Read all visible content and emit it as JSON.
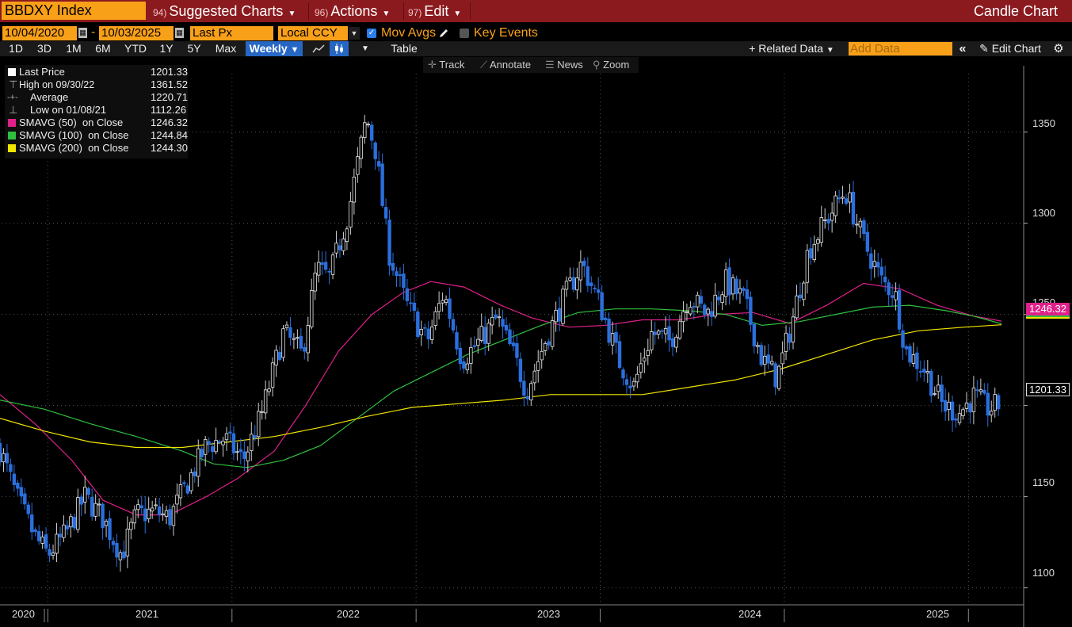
{
  "header": {
    "ticker": "BBDXY Index",
    "menus": [
      {
        "num": "94)",
        "label": "Suggested Charts"
      },
      {
        "num": "96)",
        "label": "Actions"
      },
      {
        "num": "97)",
        "label": "Edit"
      }
    ],
    "chart_title": "Candle Chart"
  },
  "controls": {
    "start_date": "10/04/2020",
    "range_sep": "-",
    "end_date": "10/03/2025",
    "field": "Last Px",
    "currency": "Local CCY",
    "mov_avgs_label": "Mov Avgs",
    "key_events_label": "Key Events"
  },
  "periods": [
    "1D",
    "3D",
    "1M",
    "6M",
    "YTD",
    "1Y",
    "5Y",
    "Max"
  ],
  "frequency": "Weekly",
  "table_label": "Table",
  "related_data_label": "Related Data",
  "add_data_placeholder": "Add Data",
  "edit_chart_label": "Edit Chart",
  "tools": [
    "Track",
    "Annotate",
    "News",
    "Zoom"
  ],
  "legend": [
    {
      "label": "Last Price",
      "value": "1201.33",
      "color": "#ffffff"
    },
    {
      "label": "High on 09/30/22",
      "value": "1361.52",
      "color": ""
    },
    {
      "label": "Average",
      "value": "1220.71",
      "color": ""
    },
    {
      "label": "Low on 01/08/21",
      "value": "1112.26",
      "color": ""
    },
    {
      "label": "SMAVG (50)  on Close",
      "value": "1246.32",
      "color": "#e0208a"
    },
    {
      "label": "SMAVG (100)  on Close",
      "value": "1244.84",
      "color": "#2fbf3f"
    },
    {
      "label": "SMAVG (200)  on Close",
      "value": "1244.30",
      "color": "#f2e500"
    }
  ],
  "price_tags": {
    "sma50": "1246.32",
    "last": "1201.33"
  },
  "colors": {
    "accent": "#f9a019",
    "header_red": "#8b1a1f",
    "candle_down": "#2b6fdc",
    "candle_up": "#ffffff",
    "sma50": "#e0208a",
    "sma100": "#2fbf3f",
    "sma200": "#f2e500"
  },
  "chart_data": {
    "type": "candlestick",
    "title": "BBDXY Index",
    "frequency": "weekly",
    "ylim": [
      1092,
      1382
    ],
    "y_ticks": [
      1100,
      1150,
      1200,
      1250,
      1300,
      1350
    ],
    "x_labels": [
      "2020",
      "2021",
      "2022",
      "2023",
      "2024",
      "2025"
    ],
    "x_range": [
      "2020-10-04",
      "2025-10-03"
    ],
    "close_path": [
      {
        "t": 2020.76,
        "v": 1176
      },
      {
        "t": 2020.85,
        "v": 1150
      },
      {
        "t": 2020.95,
        "v": 1128
      },
      {
        "t": 2021.02,
        "v": 1118
      },
      {
        "t": 2021.12,
        "v": 1130
      },
      {
        "t": 2021.22,
        "v": 1150
      },
      {
        "t": 2021.32,
        "v": 1138
      },
      {
        "t": 2021.42,
        "v": 1118
      },
      {
        "t": 2021.5,
        "v": 1140
      },
      {
        "t": 2021.6,
        "v": 1142
      },
      {
        "t": 2021.68,
        "v": 1138
      },
      {
        "t": 2021.78,
        "v": 1158
      },
      {
        "t": 2021.88,
        "v": 1178
      },
      {
        "t": 2021.98,
        "v": 1182
      },
      {
        "t": 2022.08,
        "v": 1170
      },
      {
        "t": 2022.18,
        "v": 1195
      },
      {
        "t": 2022.3,
        "v": 1240
      },
      {
        "t": 2022.4,
        "v": 1228
      },
      {
        "t": 2022.48,
        "v": 1275
      },
      {
        "t": 2022.55,
        "v": 1270
      },
      {
        "t": 2022.65,
        "v": 1305
      },
      {
        "t": 2022.75,
        "v": 1358
      },
      {
        "t": 2022.8,
        "v": 1340
      },
      {
        "t": 2022.87,
        "v": 1285
      },
      {
        "t": 2022.97,
        "v": 1255
      },
      {
        "t": 2023.08,
        "v": 1235
      },
      {
        "t": 2023.17,
        "v": 1262
      },
      {
        "t": 2023.27,
        "v": 1225
      },
      {
        "t": 2023.36,
        "v": 1235
      },
      {
        "t": 2023.46,
        "v": 1248
      },
      {
        "t": 2023.56,
        "v": 1225
      },
      {
        "t": 2023.62,
        "v": 1208
      },
      {
        "t": 2023.72,
        "v": 1235
      },
      {
        "t": 2023.82,
        "v": 1258
      },
      {
        "t": 2023.92,
        "v": 1278
      },
      {
        "t": 2024.02,
        "v": 1255
      },
      {
        "t": 2024.12,
        "v": 1225
      },
      {
        "t": 2024.2,
        "v": 1210
      },
      {
        "t": 2024.3,
        "v": 1240
      },
      {
        "t": 2024.4,
        "v": 1235
      },
      {
        "t": 2024.5,
        "v": 1260
      },
      {
        "t": 2024.6,
        "v": 1250
      },
      {
        "t": 2024.7,
        "v": 1268
      },
      {
        "t": 2024.8,
        "v": 1258
      },
      {
        "t": 2024.9,
        "v": 1225
      },
      {
        "t": 2024.98,
        "v": 1215
      },
      {
        "t": 2025.06,
        "v": 1245
      },
      {
        "t": 2025.15,
        "v": 1285
      },
      {
        "t": 2025.25,
        "v": 1302
      },
      {
        "t": 2025.35,
        "v": 1318
      },
      {
        "t": 2025.45,
        "v": 1290
      },
      {
        "t": 2025.55,
        "v": 1268
      },
      {
        "t": 2025.62,
        "v": 1262
      },
      {
        "t": 2025.68,
        "v": 1230
      },
      {
        "t": 2025.78,
        "v": 1220
      },
      {
        "t": 2025.88,
        "v": 1200
      },
      {
        "t": 2025.97,
        "v": 1196
      },
      {
        "t": 2026.05,
        "v": 1205
      },
      {
        "t": 2026.13,
        "v": 1198
      },
      {
        "t": 2026.2,
        "v": 1201
      }
    ],
    "series": [
      {
        "name": "SMAVG (50) on Close",
        "color": "#e0208a",
        "values": [
          {
            "t": 2020.76,
            "v": 1206
          },
          {
            "t": 2020.95,
            "v": 1190
          },
          {
            "t": 2021.15,
            "v": 1170
          },
          {
            "t": 2021.32,
            "v": 1148
          },
          {
            "t": 2021.5,
            "v": 1140
          },
          {
            "t": 2021.68,
            "v": 1140
          },
          {
            "t": 2021.88,
            "v": 1150
          },
          {
            "t": 2022.05,
            "v": 1160
          },
          {
            "t": 2022.25,
            "v": 1175
          },
          {
            "t": 2022.42,
            "v": 1200
          },
          {
            "t": 2022.6,
            "v": 1230
          },
          {
            "t": 2022.78,
            "v": 1250
          },
          {
            "t": 2022.95,
            "v": 1262
          },
          {
            "t": 2023.1,
            "v": 1268
          },
          {
            "t": 2023.28,
            "v": 1265
          },
          {
            "t": 2023.48,
            "v": 1255
          },
          {
            "t": 2023.65,
            "v": 1248
          },
          {
            "t": 2023.85,
            "v": 1243
          },
          {
            "t": 2024.05,
            "v": 1244
          },
          {
            "t": 2024.25,
            "v": 1247
          },
          {
            "t": 2024.45,
            "v": 1247
          },
          {
            "t": 2024.65,
            "v": 1250
          },
          {
            "t": 2024.85,
            "v": 1251
          },
          {
            "t": 2025.05,
            "v": 1245
          },
          {
            "t": 2025.25,
            "v": 1255
          },
          {
            "t": 2025.45,
            "v": 1267
          },
          {
            "t": 2025.65,
            "v": 1264
          },
          {
            "t": 2025.85,
            "v": 1255
          },
          {
            "t": 2026.05,
            "v": 1249
          },
          {
            "t": 2026.2,
            "v": 1246.32
          }
        ]
      },
      {
        "name": "SMAVG (100) on Close",
        "color": "#2fbf3f",
        "values": [
          {
            "t": 2020.76,
            "v": 1203
          },
          {
            "t": 2021.0,
            "v": 1198
          },
          {
            "t": 2021.25,
            "v": 1190
          },
          {
            "t": 2021.5,
            "v": 1183
          },
          {
            "t": 2021.75,
            "v": 1175
          },
          {
            "t": 2021.92,
            "v": 1168
          },
          {
            "t": 2022.1,
            "v": 1166
          },
          {
            "t": 2022.3,
            "v": 1170
          },
          {
            "t": 2022.5,
            "v": 1178
          },
          {
            "t": 2022.7,
            "v": 1193
          },
          {
            "t": 2022.9,
            "v": 1208
          },
          {
            "t": 2023.1,
            "v": 1218
          },
          {
            "t": 2023.3,
            "v": 1228
          },
          {
            "t": 2023.5,
            "v": 1236
          },
          {
            "t": 2023.7,
            "v": 1244
          },
          {
            "t": 2023.9,
            "v": 1251
          },
          {
            "t": 2024.1,
            "v": 1253
          },
          {
            "t": 2024.3,
            "v": 1253
          },
          {
            "t": 2024.5,
            "v": 1252
          },
          {
            "t": 2024.7,
            "v": 1250
          },
          {
            "t": 2024.9,
            "v": 1244
          },
          {
            "t": 2025.1,
            "v": 1246
          },
          {
            "t": 2025.3,
            "v": 1250
          },
          {
            "t": 2025.5,
            "v": 1254
          },
          {
            "t": 2025.7,
            "v": 1255
          },
          {
            "t": 2025.9,
            "v": 1252
          },
          {
            "t": 2026.05,
            "v": 1249
          },
          {
            "t": 2026.2,
            "v": 1244.84
          }
        ]
      },
      {
        "name": "SMAVG (200) on Close",
        "color": "#f2e500",
        "values": [
          {
            "t": 2020.76,
            "v": 1193
          },
          {
            "t": 2021.0,
            "v": 1186
          },
          {
            "t": 2021.25,
            "v": 1180
          },
          {
            "t": 2021.5,
            "v": 1177
          },
          {
            "t": 2021.75,
            "v": 1177
          },
          {
            "t": 2022.0,
            "v": 1180
          },
          {
            "t": 2022.25,
            "v": 1183
          },
          {
            "t": 2022.5,
            "v": 1188
          },
          {
            "t": 2022.75,
            "v": 1194
          },
          {
            "t": 2023.0,
            "v": 1199
          },
          {
            "t": 2023.25,
            "v": 1201
          },
          {
            "t": 2023.5,
            "v": 1203
          },
          {
            "t": 2023.75,
            "v": 1206
          },
          {
            "t": 2024.0,
            "v": 1206
          },
          {
            "t": 2024.25,
            "v": 1206
          },
          {
            "t": 2024.5,
            "v": 1210
          },
          {
            "t": 2024.75,
            "v": 1214
          },
          {
            "t": 2025.0,
            "v": 1220
          },
          {
            "t": 2025.25,
            "v": 1228
          },
          {
            "t": 2025.5,
            "v": 1236
          },
          {
            "t": 2025.75,
            "v": 1241
          },
          {
            "t": 2026.0,
            "v": 1243
          },
          {
            "t": 2026.2,
            "v": 1244.3
          }
        ]
      }
    ]
  }
}
